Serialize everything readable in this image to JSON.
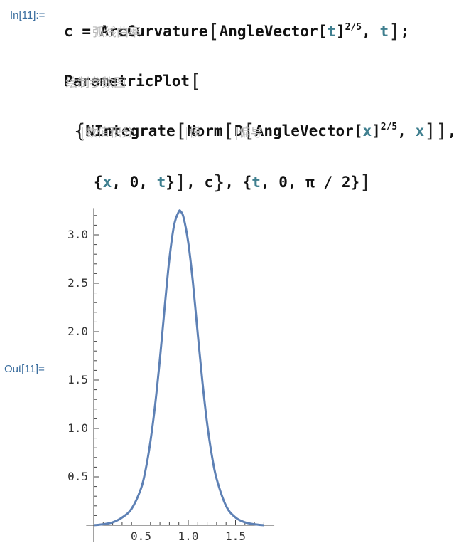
{
  "cell": {
    "in_label": "In[11]:=",
    "out_label": "Out[11]="
  },
  "line1": {
    "c": "c",
    "eq": "=",
    "fn": "ArcCurvature",
    "fn2": "AngleVector",
    "t1": "t",
    "exp": "2/5",
    "comma": ",",
    "t2": "t",
    "semi": ";"
  },
  "line2": {
    "fn": "ParametricPlot"
  },
  "line3": {
    "fn1": "NIntegrate",
    "fn2": "Norm",
    "fn3": "D",
    "fn4": "AngleVector",
    "x1": "x",
    "exp": "2/5",
    "x2": "x"
  },
  "line4": {
    "x": "x",
    "zero1": "0",
    "t": "t",
    "c": "c",
    "t2": "t",
    "zero2": "0",
    "pi": "π",
    "slash": "/",
    "two": "2"
  },
  "hints": {
    "arc_curvature": "弧线曲率",
    "parametric_plot": "绘制参数图",
    "nintegrate": "数值积分",
    "norm": "模",
    "d": "偏导"
  },
  "chart_data": {
    "type": "line",
    "x_ticks": [
      "0.5",
      "1.0",
      "1.5"
    ],
    "y_ticks": [
      "0.5",
      "1.0",
      "1.5",
      "2.0",
      "2.5",
      "3.0"
    ],
    "xlim": [
      -0.02,
      1.85
    ],
    "ylim": [
      -0.01,
      3.35
    ],
    "curve_color": "#5e81b5",
    "series": [
      {
        "x": [
          0.0,
          0.1,
          0.2,
          0.3,
          0.4,
          0.5,
          0.55,
          0.6,
          0.65,
          0.7,
          0.75,
          0.8,
          0.85,
          0.9,
          0.92,
          0.95,
          1.0,
          1.05,
          1.1,
          1.15,
          1.2,
          1.25,
          1.3,
          1.4,
          1.5,
          1.6,
          1.7,
          1.8
        ],
        "y": [
          0.0,
          0.01,
          0.03,
          0.08,
          0.17,
          0.38,
          0.58,
          0.87,
          1.25,
          1.72,
          2.25,
          2.75,
          3.1,
          3.24,
          3.24,
          3.18,
          2.92,
          2.5,
          1.98,
          1.48,
          1.05,
          0.72,
          0.48,
          0.2,
          0.08,
          0.03,
          0.01,
          0.0
        ]
      }
    ]
  }
}
